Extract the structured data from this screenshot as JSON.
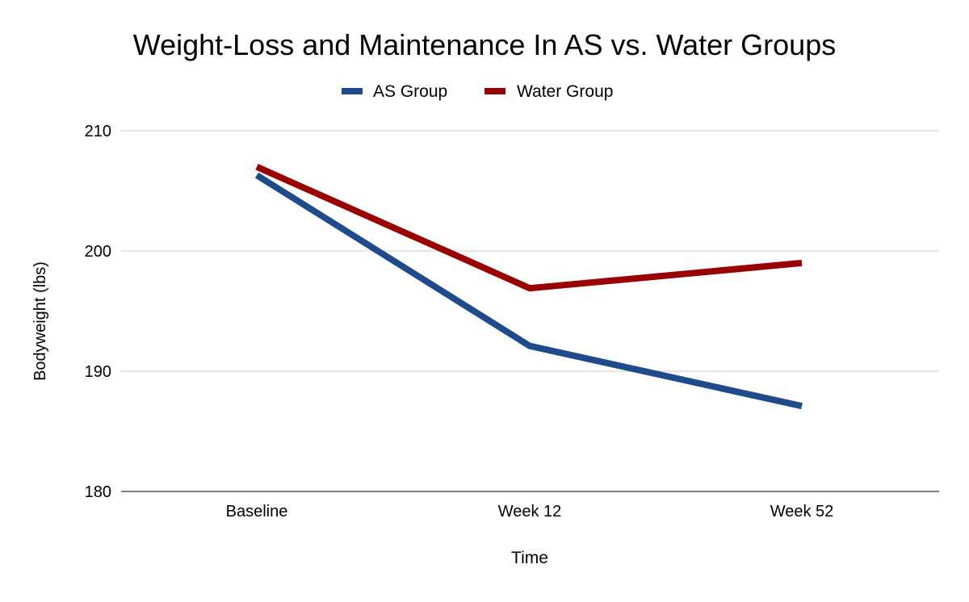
{
  "chart_data": {
    "type": "line",
    "title": "Weight-Loss and Maintenance In AS vs. Water Groups",
    "xlabel": "Time",
    "ylabel": "Bodyweight (lbs)",
    "categories": [
      "Baseline",
      "Week 12",
      "Week 52"
    ],
    "series": [
      {
        "name": "AS Group",
        "color": "#1f4a8c",
        "values": [
          206.3,
          192.1,
          187.1
        ]
      },
      {
        "name": "Water Group",
        "color": "#990000",
        "values": [
          207.0,
          196.9,
          199.0
        ]
      }
    ],
    "ylim": [
      180,
      210
    ],
    "yticks": [
      180,
      190,
      200,
      210
    ],
    "grid": true,
    "legend_position": "top"
  }
}
